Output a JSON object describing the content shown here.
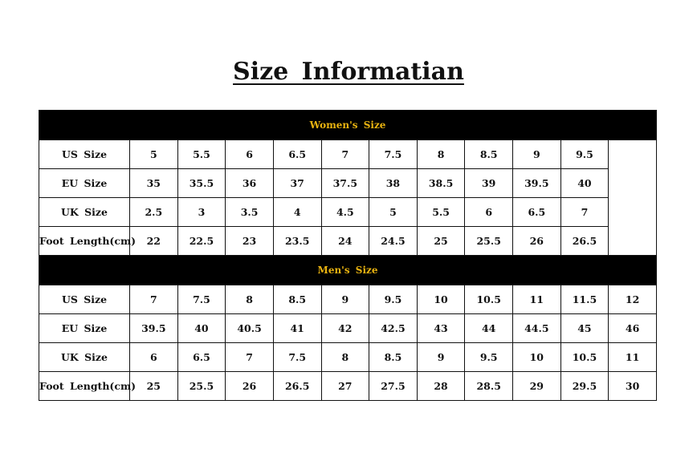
{
  "title": "Size Informatian",
  "colors": {
    "header_bg": "#000000",
    "header_text": "#e9b310"
  },
  "women": {
    "heading": "Women's Size",
    "rows": [
      {
        "label": "US Size",
        "values": [
          "5",
          "5.5",
          "6",
          "6.5",
          "7",
          "7.5",
          "8",
          "8.5",
          "9",
          "9.5"
        ]
      },
      {
        "label": "EU Size",
        "values": [
          "35",
          "35.5",
          "36",
          "37",
          "37.5",
          "38",
          "38.5",
          "39",
          "39.5",
          "40"
        ]
      },
      {
        "label": "UK Size",
        "values": [
          "2.5",
          "3",
          "3.5",
          "4",
          "4.5",
          "5",
          "5.5",
          "6",
          "6.5",
          "7"
        ]
      },
      {
        "label": "Foot Length(cm)",
        "values": [
          "22",
          "22.5",
          "23",
          "23.5",
          "24",
          "24.5",
          "25",
          "25.5",
          "26",
          "26.5"
        ]
      }
    ]
  },
  "men": {
    "heading": "Men's Size",
    "rows": [
      {
        "label": "US Size",
        "values": [
          "7",
          "7.5",
          "8",
          "8.5",
          "9",
          "9.5",
          "10",
          "10.5",
          "11",
          "11.5",
          "12"
        ]
      },
      {
        "label": "EU Size",
        "values": [
          "39.5",
          "40",
          "40.5",
          "41",
          "42",
          "42.5",
          "43",
          "44",
          "44.5",
          "45",
          "46"
        ]
      },
      {
        "label": "UK Size",
        "values": [
          "6",
          "6.5",
          "7",
          "7.5",
          "8",
          "8.5",
          "9",
          "9.5",
          "10",
          "10.5",
          "11"
        ]
      },
      {
        "label": "Foot Length(cm)",
        "values": [
          "25",
          "25.5",
          "26",
          "26.5",
          "27",
          "27.5",
          "28",
          "28.5",
          "29",
          "29.5",
          "30"
        ]
      }
    ]
  }
}
